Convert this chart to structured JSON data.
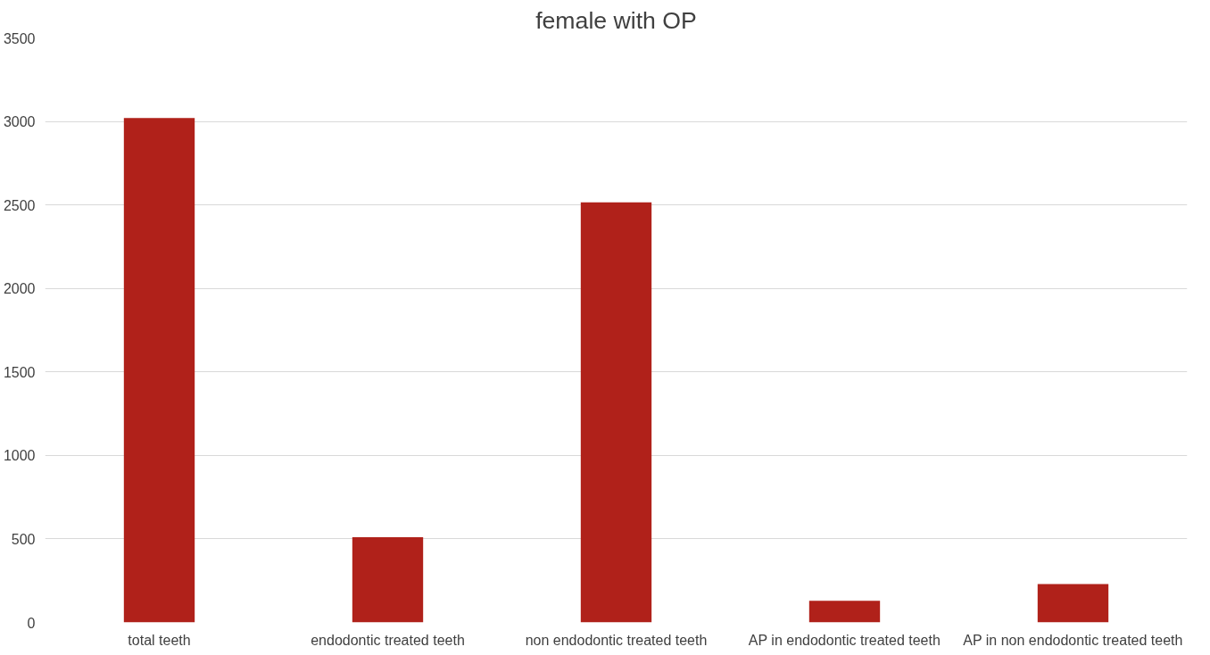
{
  "chart_data": {
    "type": "bar",
    "title": "female with OP",
    "categories": [
      "total teeth",
      "endodontic treated teeth",
      "non endodontic treated teeth",
      "AP in endodontic treated teeth",
      "AP in non endodontic treated teeth"
    ],
    "values": [
      3020,
      510,
      2515,
      130,
      230
    ],
    "color": "#b0211a",
    "ylim": [
      0,
      3500
    ],
    "yticks": [
      0,
      500,
      1000,
      1500,
      2000,
      2500,
      3000,
      3500
    ],
    "grid": "y"
  }
}
